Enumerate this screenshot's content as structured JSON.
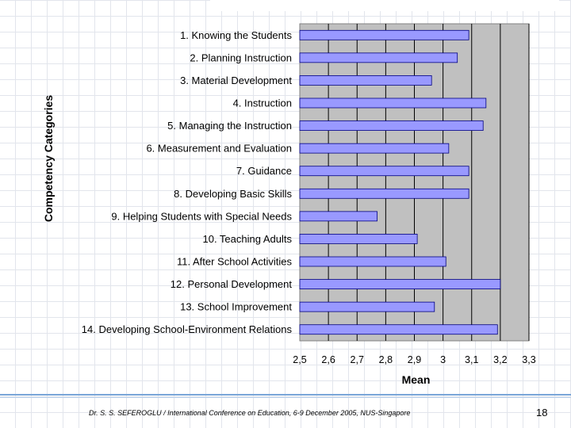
{
  "chart_data": {
    "type": "bar",
    "orientation": "horizontal",
    "categories": [
      "1. Knowing the Students",
      "2. Planning Instruction",
      "3. Material Development",
      "4. Instruction",
      "5. Managing the Instruction",
      "6. Measurement and Evaluation",
      "7. Guidance",
      "8. Developing Basic Skills",
      "9. Helping Students with Special Needs",
      "10. Teaching Adults",
      "11. After School Activities",
      "12. Personal Development",
      "13. School Improvement",
      "14. Developing School-Environment Relations"
    ],
    "values": [
      3.09,
      3.05,
      2.96,
      3.15,
      3.14,
      3.02,
      3.09,
      3.09,
      2.77,
      2.91,
      3.01,
      3.2,
      2.97,
      3.19
    ],
    "xlabel": "Mean",
    "ylabel": "Competency Categories",
    "xlim": [
      2.5,
      3.3
    ],
    "tick_values": [
      2.5,
      2.6,
      2.7,
      2.8,
      2.9,
      3.0,
      3.1,
      3.2,
      3.3
    ],
    "tick_labels": [
      "2,5",
      "2,6",
      "2,7",
      "2,8",
      "2,9",
      "3",
      "3,1",
      "3,2",
      "3,3"
    ],
    "plot_area_background": "#c0c0c0",
    "bar_color": "#9999ff",
    "bar_edge_color": "#000080"
  },
  "footer": {
    "text": "Dr. S. S. SEFEROGLU / International Conference on Education, 6-9 December 2005, NUS-Singapore",
    "page_number": "18"
  }
}
